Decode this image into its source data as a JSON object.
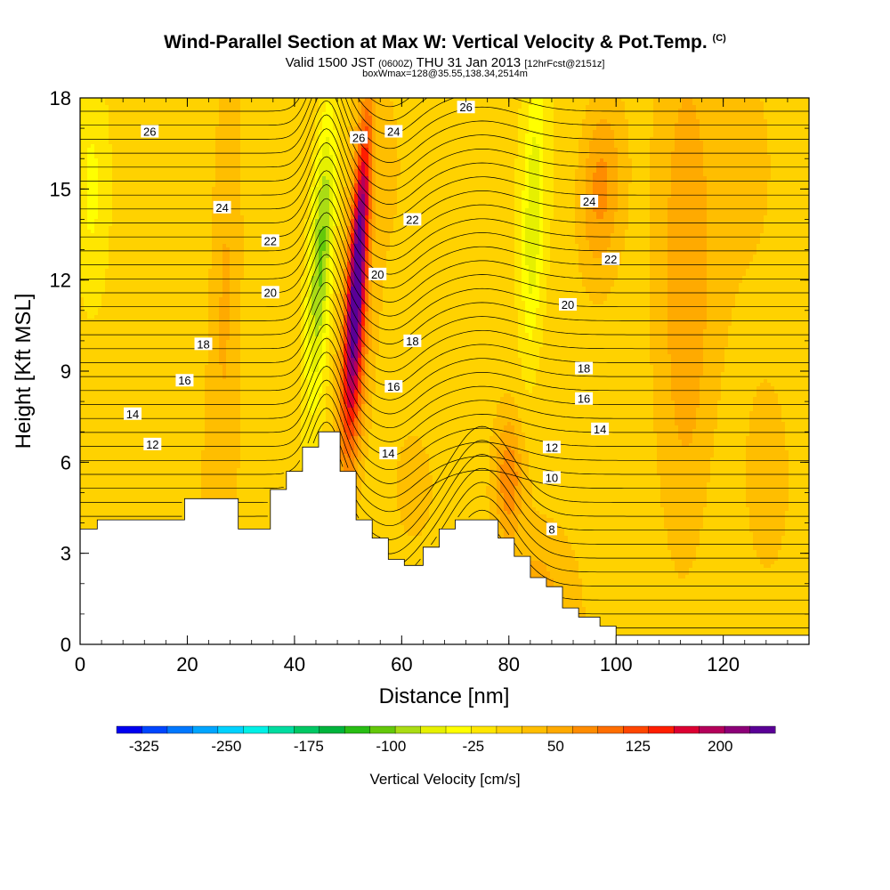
{
  "header": {
    "title": "Wind-Parallel Section at Max W: Vertical Velocity & Pot.Temp.",
    "title_mark": "(C)",
    "valid_prefix": "Valid 1500 JST",
    "valid_zulu": "(0600Z)",
    "valid_date": "THU 31 Jan 2013",
    "forecast_note": "[12hrFcst@2151z]",
    "box_info": "boxWmax=128@35.55,138.34,2514m"
  },
  "chart_data": {
    "type": "heatmap",
    "xlabel": "Distance [nm]",
    "ylabel": "Height [Kft MSL]",
    "xlim": [
      0,
      136
    ],
    "ylim": [
      0,
      18
    ],
    "x_ticks": [
      0,
      20,
      40,
      60,
      80,
      100,
      120
    ],
    "y_ticks": [
      0,
      3,
      6,
      9,
      12,
      15,
      18
    ],
    "colorbar": {
      "title": "Vertical Velocity [cm/s]",
      "tick_labels": [
        "-325",
        "-250",
        "-175",
        "-100",
        "-25",
        "50",
        "125",
        "200"
      ],
      "min": -350,
      "max": 250,
      "colors": [
        "#0000f0",
        "#0046ff",
        "#0078ff",
        "#00a5ff",
        "#00d2ff",
        "#00f0e6",
        "#00dca0",
        "#00c864",
        "#00b43c",
        "#28be14",
        "#64c80a",
        "#aadc14",
        "#e6f000",
        "#ffff00",
        "#ffe600",
        "#ffd200",
        "#ffbe00",
        "#ffaa00",
        "#ff8c00",
        "#ff6e00",
        "#ff4600",
        "#ff1e00",
        "#dc0032",
        "#b4005a",
        "#8c0078",
        "#5a0096"
      ]
    },
    "terrain": [
      [
        0,
        3.8
      ],
      [
        3.2,
        3.8
      ],
      [
        3.2,
        4.1
      ],
      [
        19.5,
        4.1
      ],
      [
        19.5,
        4.8
      ],
      [
        29.5,
        4.8
      ],
      [
        29.5,
        3.8
      ],
      [
        35.5,
        3.8
      ],
      [
        35.5,
        5.1
      ],
      [
        38.5,
        5.1
      ],
      [
        38.5,
        5.7
      ],
      [
        41.5,
        5.7
      ],
      [
        41.5,
        6.5
      ],
      [
        44.5,
        6.5
      ],
      [
        44.5,
        7.0
      ],
      [
        48.5,
        7.0
      ],
      [
        48.5,
        5.7
      ],
      [
        51.5,
        5.7
      ],
      [
        51.5,
        4.1
      ],
      [
        54.5,
        4.1
      ],
      [
        54.5,
        3.5
      ],
      [
        57.5,
        3.5
      ],
      [
        57.5,
        2.8
      ],
      [
        60.5,
        2.8
      ],
      [
        60.5,
        2.6
      ],
      [
        64,
        2.6
      ],
      [
        64,
        3.2
      ],
      [
        67,
        3.2
      ],
      [
        67,
        3.8
      ],
      [
        70,
        3.8
      ],
      [
        70,
        4.1
      ],
      [
        78,
        4.1
      ],
      [
        78,
        3.5
      ],
      [
        81,
        3.5
      ],
      [
        81,
        2.9
      ],
      [
        84,
        2.9
      ],
      [
        84,
        2.2
      ],
      [
        87,
        2.2
      ],
      [
        87,
        1.9
      ],
      [
        90,
        1.9
      ],
      [
        90,
        1.2
      ],
      [
        93,
        1.2
      ],
      [
        93,
        0.9
      ],
      [
        97,
        0.9
      ],
      [
        97,
        0.6
      ],
      [
        100,
        0.6
      ],
      [
        100,
        0.3
      ],
      [
        136,
        0.3
      ]
    ],
    "w_fields": [
      {
        "x": 52,
        "y": 13,
        "w": 200,
        "sx": 1.6,
        "sy": 4.5,
        "tilt": 0.35
      },
      {
        "x": 51,
        "y": 9,
        "w": 110,
        "sx": 2.5,
        "sy": 4,
        "tilt": 0.25
      },
      {
        "x": 45,
        "y": 13,
        "w": -120,
        "sx": 2.4,
        "sy": 5,
        "tilt": 0.3
      },
      {
        "x": 84.5,
        "y": 14,
        "w": -70,
        "sx": 2.0,
        "sy": 4.5,
        "tilt": 0.15
      },
      {
        "x": 97,
        "y": 15,
        "w": 70,
        "sx": 4,
        "sy": 3,
        "tilt": 0.2
      },
      {
        "x": 27,
        "y": 12,
        "w": 40,
        "sx": 3,
        "sy": 8,
        "tilt": 0.1
      },
      {
        "x": 113,
        "y": 11,
        "w": 45,
        "sx": 5,
        "sy": 9,
        "tilt": 0
      },
      {
        "x": 2,
        "y": 15,
        "w": -40,
        "sx": 3,
        "sy": 4,
        "tilt": 0
      },
      {
        "x": 80,
        "y": 5.5,
        "w": 70,
        "sx": 2.5,
        "sy": 2,
        "tilt": 0
      },
      {
        "x": 85,
        "y": 1.5,
        "w": 45,
        "sx": 4,
        "sy": 1.5,
        "tilt": 0
      },
      {
        "x": 62,
        "y": 5,
        "w": 25,
        "sx": 4,
        "sy": 2,
        "tilt": 0
      },
      {
        "x": 128,
        "y": 5,
        "w": 35,
        "sx": 4,
        "sy": 3,
        "tilt": 0
      }
    ],
    "theta_isolines": [
      {
        "value": 8,
        "label": "8"
      },
      {
        "value": 10,
        "label": "10"
      },
      {
        "value": 12,
        "label": "12"
      },
      {
        "value": 14,
        "label": "14"
      },
      {
        "value": 16,
        "label": "16"
      },
      {
        "value": 18,
        "label": "18"
      },
      {
        "value": 20,
        "label": "20"
      },
      {
        "value": 22,
        "label": "22"
      },
      {
        "value": 24,
        "label": "24"
      },
      {
        "value": 26,
        "label": "26"
      }
    ],
    "contour_labels": [
      {
        "text": "26",
        "x": 13,
        "y": 16.9
      },
      {
        "text": "24",
        "x": 26.5,
        "y": 14.4
      },
      {
        "text": "22",
        "x": 35.5,
        "y": 13.3
      },
      {
        "text": "20",
        "x": 35.5,
        "y": 11.6
      },
      {
        "text": "18",
        "x": 23,
        "y": 9.9
      },
      {
        "text": "16",
        "x": 19.5,
        "y": 8.7
      },
      {
        "text": "14",
        "x": 9.8,
        "y": 7.6
      },
      {
        "text": "12",
        "x": 13.5,
        "y": 6.6
      },
      {
        "text": "26",
        "x": 52,
        "y": 16.7
      },
      {
        "text": "24",
        "x": 58.5,
        "y": 16.9
      },
      {
        "text": "22",
        "x": 62,
        "y": 14.0
      },
      {
        "text": "20",
        "x": 55.5,
        "y": 12.2
      },
      {
        "text": "18",
        "x": 62,
        "y": 10.0
      },
      {
        "text": "16",
        "x": 58.5,
        "y": 8.5
      },
      {
        "text": "14",
        "x": 57.5,
        "y": 6.3
      },
      {
        "text": "26",
        "x": 72,
        "y": 17.7
      },
      {
        "text": "24",
        "x": 95,
        "y": 14.6
      },
      {
        "text": "22",
        "x": 99,
        "y": 12.7
      },
      {
        "text": "20",
        "x": 91,
        "y": 11.2
      },
      {
        "text": "18",
        "x": 94,
        "y": 9.1
      },
      {
        "text": "16",
        "x": 94,
        "y": 8.1
      },
      {
        "text": "14",
        "x": 97,
        "y": 7.1
      },
      {
        "text": "12",
        "x": 88,
        "y": 6.5
      },
      {
        "text": "10",
        "x": 88,
        "y": 5.5
      },
      {
        "text": "8",
        "x": 88,
        "y": 3.8
      }
    ]
  }
}
